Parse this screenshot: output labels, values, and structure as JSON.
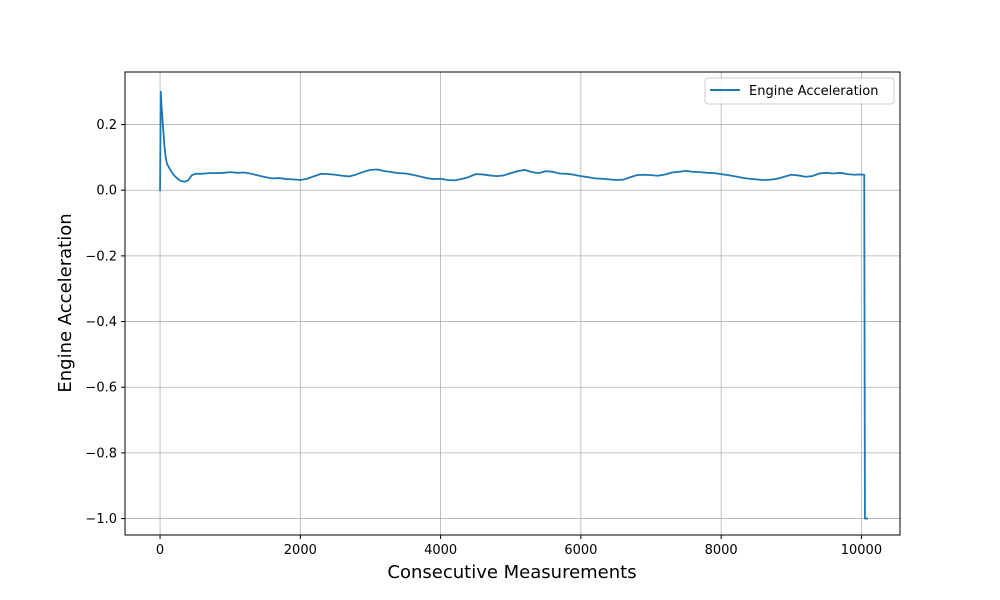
{
  "chart_data": {
    "type": "line",
    "title": "",
    "xlabel": "Consecutive Measurements",
    "ylabel": "Engine Acceleration",
    "xlim": [
      -500,
      10550
    ],
    "ylim": [
      -1.05,
      0.36
    ],
    "xticks": [
      0,
      2000,
      4000,
      6000,
      8000,
      10000
    ],
    "yticks": [
      -1.0,
      -0.8,
      -0.6,
      -0.4,
      -0.2,
      0.0,
      0.2
    ],
    "xtick_labels": [
      "0",
      "2000",
      "4000",
      "6000",
      "8000",
      "10000"
    ],
    "ytick_labels": [
      "−1.0",
      "−0.8",
      "−0.6",
      "−0.4",
      "−0.2",
      "0.0",
      "0.2"
    ],
    "grid": true,
    "legend_position": "top-right",
    "series": [
      {
        "name": "Engine Acceleration",
        "color": "#1f77b4",
        "x": [
          0,
          10,
          20,
          40,
          60,
          80,
          100,
          150,
          200,
          250,
          300,
          350,
          400,
          450,
          500,
          600,
          700,
          800,
          900,
          1000,
          1100,
          1200,
          1300,
          1400,
          1500,
          1600,
          1700,
          1800,
          1900,
          2000,
          2100,
          2200,
          2300,
          2400,
          2500,
          2600,
          2700,
          2800,
          2900,
          3000,
          3100,
          3200,
          3300,
          3400,
          3500,
          3600,
          3700,
          3800,
          3900,
          4000,
          4100,
          4200,
          4300,
          4400,
          4500,
          4600,
          4700,
          4800,
          4900,
          5000,
          5100,
          5200,
          5300,
          5400,
          5500,
          5600,
          5700,
          5800,
          5900,
          6000,
          6100,
          6200,
          6300,
          6400,
          6500,
          6600,
          6700,
          6800,
          6900,
          7000,
          7100,
          7200,
          7300,
          7400,
          7500,
          7600,
          7700,
          7800,
          7900,
          8000,
          8100,
          8200,
          8300,
          8400,
          8500,
          8600,
          8700,
          8800,
          8900,
          9000,
          9100,
          9200,
          9300,
          9400,
          9500,
          9600,
          9700,
          9800,
          9900,
          10000,
          10030,
          10040,
          10050,
          10080
        ],
        "y": [
          0.0,
          0.3,
          0.26,
          0.2,
          0.14,
          0.1,
          0.08,
          0.06,
          0.045,
          0.035,
          0.028,
          0.026,
          0.03,
          0.045,
          0.05,
          0.05,
          0.052,
          0.052,
          0.053,
          0.055,
          0.053,
          0.054,
          0.05,
          0.045,
          0.04,
          0.036,
          0.037,
          0.034,
          0.033,
          0.031,
          0.035,
          0.043,
          0.05,
          0.049,
          0.047,
          0.044,
          0.042,
          0.048,
          0.056,
          0.062,
          0.063,
          0.058,
          0.055,
          0.052,
          0.051,
          0.047,
          0.042,
          0.037,
          0.034,
          0.035,
          0.031,
          0.03,
          0.034,
          0.04,
          0.049,
          0.048,
          0.045,
          0.043,
          0.045,
          0.052,
          0.058,
          0.062,
          0.055,
          0.052,
          0.058,
          0.056,
          0.051,
          0.05,
          0.047,
          0.043,
          0.04,
          0.036,
          0.035,
          0.033,
          0.031,
          0.032,
          0.039,
          0.046,
          0.047,
          0.046,
          0.044,
          0.048,
          0.054,
          0.056,
          0.059,
          0.056,
          0.055,
          0.053,
          0.052,
          0.049,
          0.046,
          0.042,
          0.038,
          0.035,
          0.033,
          0.031,
          0.032,
          0.035,
          0.041,
          0.047,
          0.045,
          0.041,
          0.043,
          0.051,
          0.053,
          0.051,
          0.053,
          0.049,
          0.047,
          0.048,
          0.047,
          0.047,
          -1.0,
          -1.0
        ]
      }
    ]
  }
}
